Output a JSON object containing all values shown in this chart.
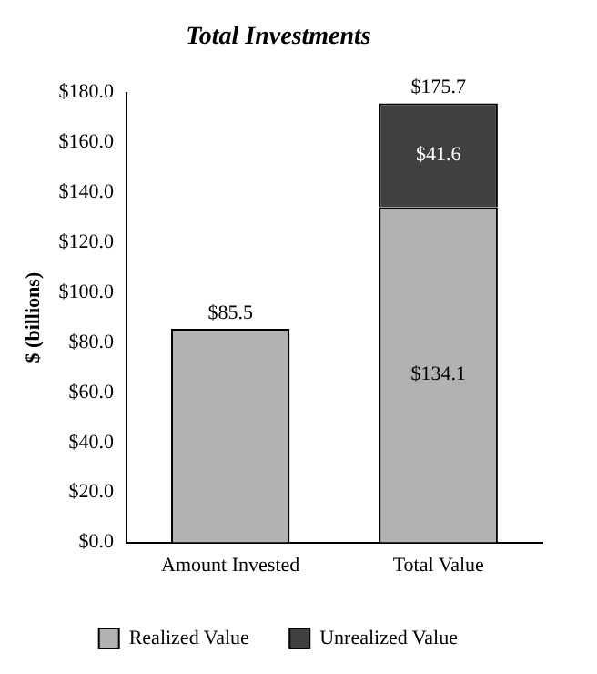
{
  "chart_data": {
    "type": "bar",
    "title": "Total Investments",
    "ylabel": "$ (billions)",
    "stacked": true,
    "categories": [
      "Amount Invested",
      "Total Value"
    ],
    "series": [
      {
        "name": "Realized Value",
        "color": "#b2b2b2",
        "values": [
          85.5,
          134.1
        ],
        "value_labels": [
          null,
          "$134.1"
        ]
      },
      {
        "name": "Unrealized Value",
        "color": "#404040",
        "values": [
          null,
          41.6
        ],
        "value_labels": [
          null,
          "$41.6"
        ]
      }
    ],
    "totals": [
      "$85.5",
      "$175.7"
    ],
    "ylim": [
      0,
      180
    ],
    "yticks": [
      {
        "value": 0,
        "label": "$0.0"
      },
      {
        "value": 20,
        "label": "$20.0"
      },
      {
        "value": 40,
        "label": "$40.0"
      },
      {
        "value": 60,
        "label": "$60.0"
      },
      {
        "value": 80,
        "label": "$80.0"
      },
      {
        "value": 100,
        "label": "$100.0"
      },
      {
        "value": 120,
        "label": "$120.0"
      },
      {
        "value": 140,
        "label": "$140.0"
      },
      {
        "value": 160,
        "label": "$160.0"
      },
      {
        "value": 180,
        "label": "$180.0"
      }
    ],
    "grid": false,
    "legend": "bottom"
  }
}
